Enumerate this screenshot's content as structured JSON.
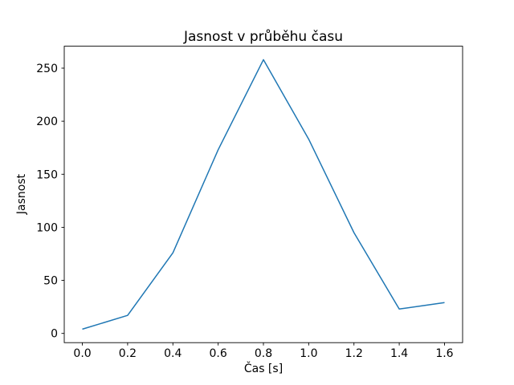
{
  "chart_data": {
    "type": "line",
    "title": "Jasnost v průběhu času",
    "xlabel": "Čas [s]",
    "ylabel": "Jasnost",
    "x": [
      0.0,
      0.2,
      0.4,
      0.6,
      0.8,
      1.0,
      1.2,
      1.4,
      1.6
    ],
    "y": [
      4,
      17,
      76,
      173,
      258,
      183,
      95,
      23,
      29
    ],
    "series_name": "Jasnost",
    "line_color": "#1f77b4",
    "line_width": 1.5,
    "xticks": [
      0.0,
      0.2,
      0.4,
      0.6,
      0.8,
      1.0,
      1.2,
      1.4,
      1.6
    ],
    "xtick_labels": [
      "0.0",
      "0.2",
      "0.4",
      "0.6",
      "0.8",
      "1.0",
      "1.2",
      "1.4",
      "1.6"
    ],
    "yticks": [
      0,
      50,
      100,
      150,
      200,
      250
    ],
    "ytick_labels": [
      "0",
      "50",
      "100",
      "150",
      "200",
      "250"
    ],
    "xlim": [
      -0.08,
      1.68
    ],
    "ylim": [
      -8.7,
      270.7
    ],
    "grid": false,
    "legend_position": "none",
    "background_color": "#ffffff",
    "spine_color": "#000000"
  }
}
